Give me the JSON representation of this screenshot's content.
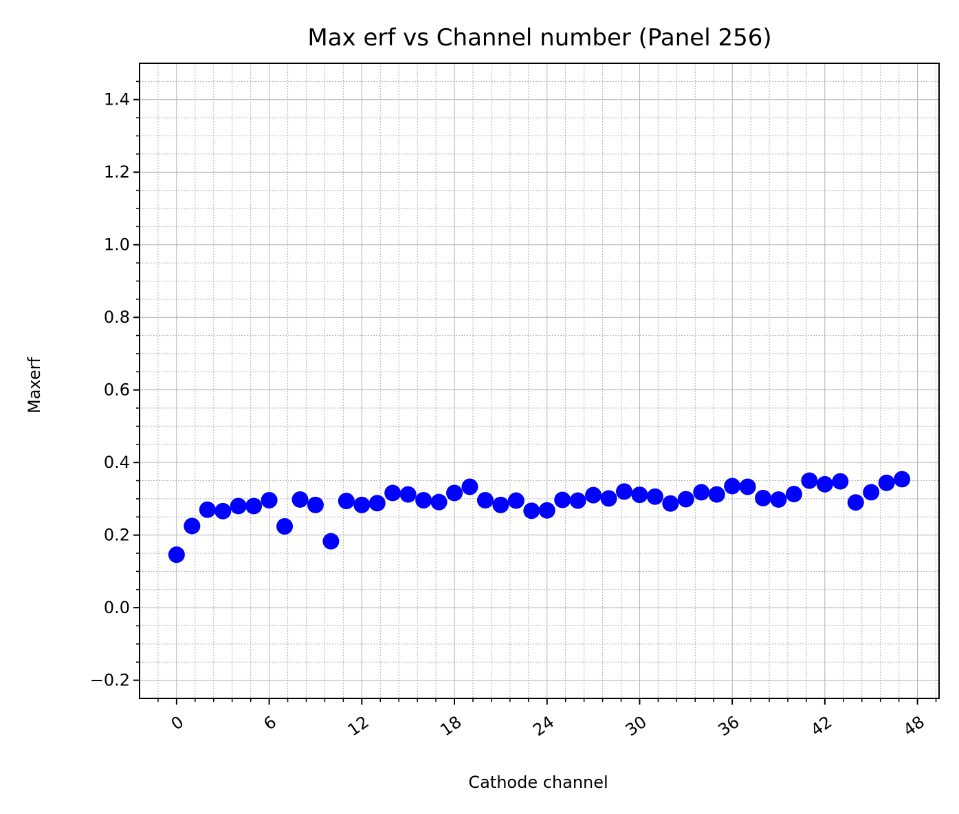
{
  "chart_data": {
    "type": "scatter",
    "title": "Max erf vs Channel number (Panel 256)",
    "xlabel": "Cathode channel",
    "ylabel": "Maxerf",
    "xlim": [
      -2.4,
      49.4
    ],
    "ylim": [
      -0.25,
      1.5
    ],
    "xticks": [
      0,
      6,
      12,
      18,
      24,
      30,
      36,
      42,
      48
    ],
    "xtick_labels": [
      "0",
      "6",
      "12",
      "18",
      "24",
      "30",
      "36",
      "42",
      "48"
    ],
    "yticks": [
      -0.2,
      0.0,
      0.2,
      0.4,
      0.6,
      0.8,
      1.0,
      1.2,
      1.4
    ],
    "ytick_labels": [
      "−0.2",
      "0.0",
      "0.2",
      "0.4",
      "0.6",
      "0.8",
      "1.0",
      "1.2",
      "1.4"
    ],
    "grid": true,
    "minor_grid": true,
    "marker_color": "#0000ff",
    "x": [
      0,
      1,
      2,
      3,
      4,
      5,
      6,
      7,
      8,
      9,
      10,
      11,
      12,
      13,
      14,
      15,
      16,
      17,
      18,
      19,
      20,
      21,
      22,
      23,
      24,
      25,
      26,
      27,
      28,
      29,
      30,
      31,
      32,
      33,
      34,
      35,
      36,
      37,
      38,
      39,
      40,
      41,
      42,
      43,
      44,
      45,
      46,
      47
    ],
    "y": [
      0.146,
      0.225,
      0.27,
      0.266,
      0.28,
      0.28,
      0.296,
      0.224,
      0.298,
      0.283,
      0.183,
      0.294,
      0.283,
      0.288,
      0.316,
      0.312,
      0.296,
      0.291,
      0.316,
      0.333,
      0.296,
      0.283,
      0.295,
      0.267,
      0.268,
      0.297,
      0.295,
      0.31,
      0.301,
      0.32,
      0.311,
      0.306,
      0.287,
      0.299,
      0.318,
      0.312,
      0.335,
      0.333,
      0.302,
      0.298,
      0.313,
      0.35,
      0.34,
      0.348,
      0.29,
      0.318,
      0.344,
      0.354
    ]
  }
}
